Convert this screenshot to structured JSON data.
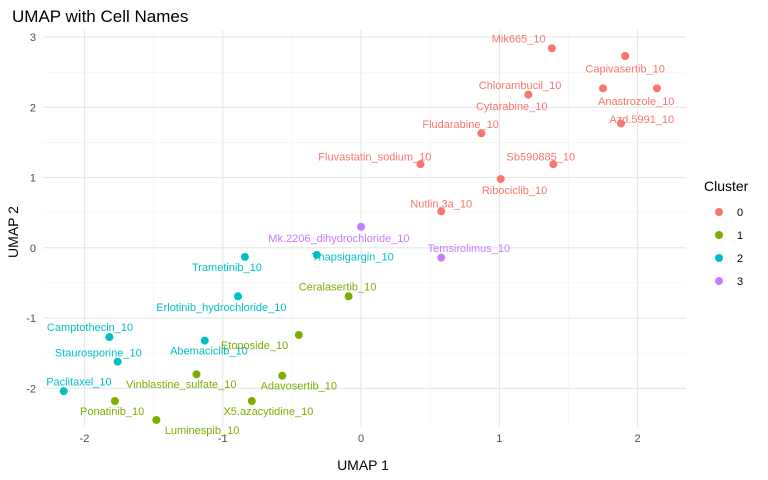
{
  "chart_data": {
    "type": "scatter",
    "title": "UMAP with Cell Names",
    "xlabel": "UMAP 1",
    "ylabel": "UMAP 2",
    "xlim": [
      -2.3,
      2.35
    ],
    "ylim": [
      -2.55,
      3.1
    ],
    "x_ticks": [
      -2,
      -1,
      0,
      1,
      2
    ],
    "y_ticks": [
      -2,
      -1,
      0,
      1,
      2,
      3
    ],
    "x_tick_labels": [
      "-2",
      "-1",
      "0",
      "1",
      "2"
    ],
    "y_tick_labels": [
      "-2",
      "-1",
      "0",
      "1",
      "2",
      "3"
    ],
    "grid": true,
    "legend": {
      "title": "Cluster",
      "position": "right",
      "entries": [
        {
          "label": "0",
          "color": "#F8766D"
        },
        {
          "label": "1",
          "color": "#7CAE00"
        },
        {
          "label": "2",
          "color": "#00BFC4"
        },
        {
          "label": "3",
          "color": "#C77CFF"
        }
      ]
    },
    "series": [
      {
        "name": "0",
        "color": "#F8766D",
        "points": [
          {
            "label": "Mik665_10",
            "x": 1.38,
            "y": 2.84,
            "lx": 1.14,
            "ly": 2.98
          },
          {
            "label": "Capivasertib_10",
            "x": 1.91,
            "y": 2.73,
            "lx": 1.91,
            "ly": 2.55
          },
          {
            "label": "Chlorambucil_10",
            "x": 1.21,
            "y": 2.18,
            "lx": 1.15,
            "ly": 2.32
          },
          {
            "label": "Anastrozole_10",
            "x": 2.14,
            "y": 2.27,
            "lx": 1.99,
            "ly": 2.09
          },
          {
            "label": "Cytarabine_10",
            "x": 1.75,
            "y": 2.27,
            "lx": 1.09,
            "ly": 2.02
          },
          {
            "label": "Azd.5991_10",
            "x": 1.88,
            "y": 1.77,
            "lx": 2.03,
            "ly": 1.83
          },
          {
            "label": "Fludarabine_10",
            "x": 0.87,
            "y": 1.63,
            "lx": 0.72,
            "ly": 1.76
          },
          {
            "label": "Fluvastatin_sodium_10",
            "x": 0.43,
            "y": 1.19,
            "lx": 0.1,
            "ly": 1.3
          },
          {
            "label": "Sb590885_10",
            "x": 1.39,
            "y": 1.19,
            "lx": 1.3,
            "ly": 1.3
          },
          {
            "label": "Ribociclib_10",
            "x": 1.01,
            "y": 0.98,
            "lx": 1.11,
            "ly": 0.82
          },
          {
            "label": "Nutlin.3a_10",
            "x": 0.58,
            "y": 0.52,
            "lx": 0.58,
            "ly": 0.63
          }
        ]
      },
      {
        "name": "1",
        "color": "#7CAE00",
        "points": [
          {
            "label": "Ceralasertib_10",
            "x": -0.09,
            "y": -0.69,
            "lx": -0.17,
            "ly": -0.55
          },
          {
            "label": "Etoposide_10",
            "x": -0.45,
            "y": -1.24,
            "lx": -0.77,
            "ly": -1.38
          },
          {
            "label": "Vinblastine_sulfate_10",
            "x": -1.19,
            "y": -1.8,
            "lx": -1.3,
            "ly": -1.94
          },
          {
            "label": "Adavosertib_10",
            "x": -0.57,
            "y": -1.82,
            "lx": -0.45,
            "ly": -1.96
          },
          {
            "label": "Ponatinib_10",
            "x": -1.78,
            "y": -2.18,
            "lx": -1.8,
            "ly": -2.32
          },
          {
            "label": "X5.azacytidine_10",
            "x": -0.79,
            "y": -2.18,
            "lx": -0.67,
            "ly": -2.32
          },
          {
            "label": "Luminespib_10",
            "x": -1.48,
            "y": -2.45,
            "lx": -1.15,
            "ly": -2.59
          }
        ]
      },
      {
        "name": "2",
        "color": "#00BFC4",
        "points": [
          {
            "label": "Trametinib_10",
            "x": -0.84,
            "y": -0.13,
            "lx": -0.97,
            "ly": -0.27
          },
          {
            "label": "Thapsigargin_10",
            "x": -0.32,
            "y": -0.1,
            "lx": -0.06,
            "ly": -0.12
          },
          {
            "label": "Erlotinib_hydrochloride_10",
            "x": -0.89,
            "y": -0.69,
            "lx": -1.01,
            "ly": -0.84
          },
          {
            "label": "Camptothecin_10",
            "x": -1.82,
            "y": -1.27,
            "lx": -1.96,
            "ly": -1.13
          },
          {
            "label": "Abemaciclib_10",
            "x": -1.13,
            "y": -1.32,
            "lx": -1.1,
            "ly": -1.46
          },
          {
            "label": "Staurosporine_10",
            "x": -1.76,
            "y": -1.62,
            "lx": -1.9,
            "ly": -1.49
          },
          {
            "label": "Paclitaxel_10",
            "x": -2.15,
            "y": -2.04,
            "lx": -2.04,
            "ly": -1.9
          }
        ]
      },
      {
        "name": "3",
        "color": "#C77CFF",
        "points": [
          {
            "label": "Mk.2206_dihydrochloride_10",
            "x": 0.0,
            "y": 0.3,
            "lx": -0.16,
            "ly": 0.14
          },
          {
            "label": "Temsirolimus_10",
            "x": 0.58,
            "y": -0.14,
            "lx": 0.78,
            "ly": 0.0
          }
        ]
      }
    ]
  }
}
